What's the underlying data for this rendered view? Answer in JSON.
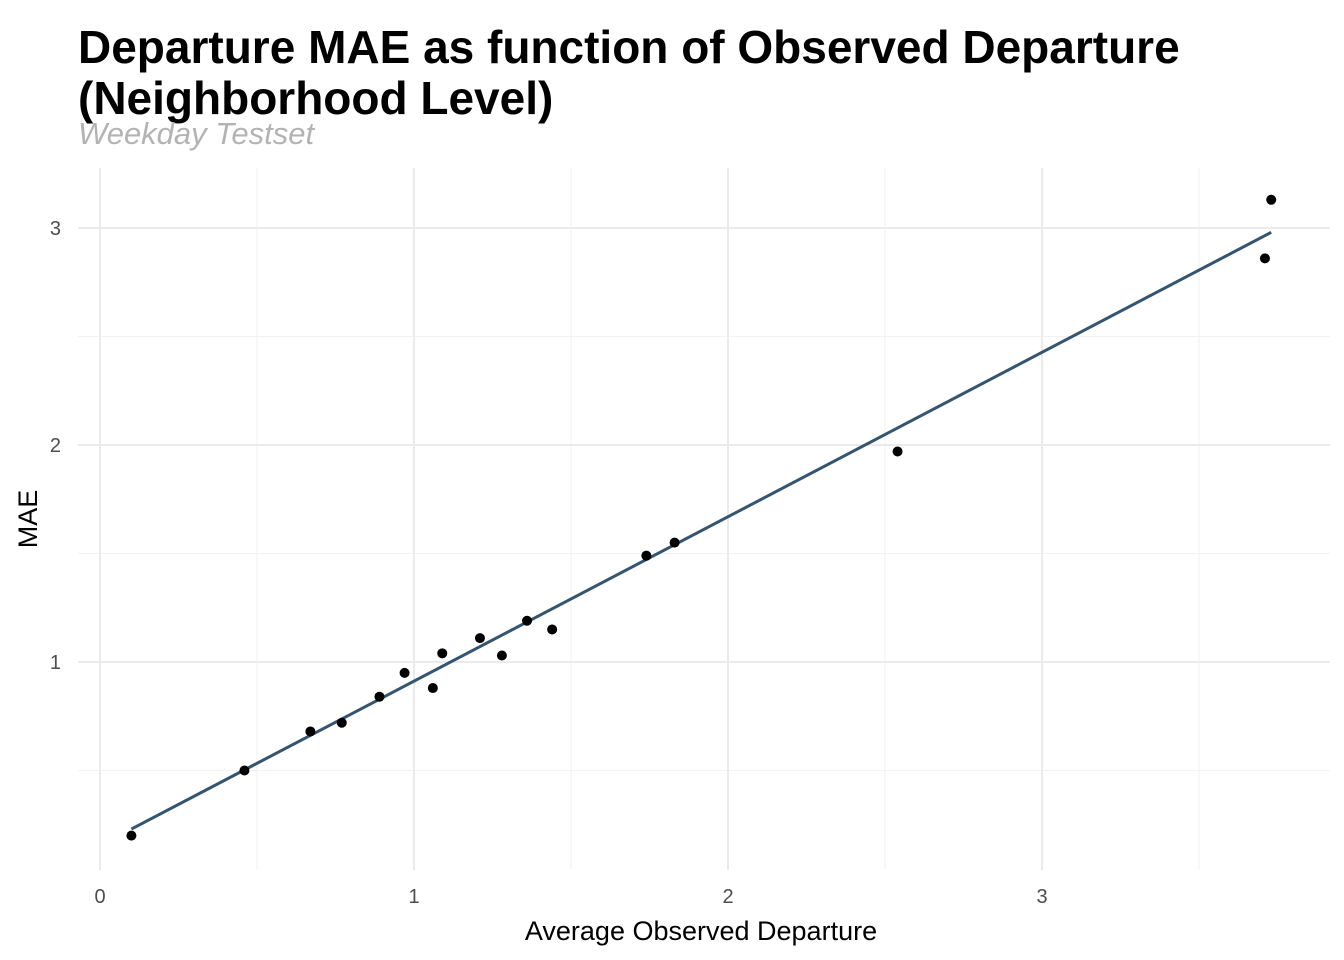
{
  "chart_data": {
    "type": "scatter",
    "title": "Departure MAE as function of Observed Departure (Neighborhood Level)",
    "subtitle": "Weekday Testset",
    "xlabel": "Average Observed Departure",
    "ylabel": "MAE",
    "xlim": [
      0,
      3.9
    ],
    "ylim": [
      0.05,
      3.3
    ],
    "x_ticks": [
      0,
      1,
      2,
      3
    ],
    "y_ticks": [
      1,
      2,
      3
    ],
    "x_minor_ticks": [
      0.5,
      1.5,
      2.5,
      3.5
    ],
    "y_minor_ticks": [
      0.5,
      1.5,
      2.5
    ],
    "grid": true,
    "point_color": "#000000",
    "fit_line_color": "#34546f",
    "points": [
      {
        "x": 0.1,
        "y": 0.2
      },
      {
        "x": 0.46,
        "y": 0.5
      },
      {
        "x": 0.67,
        "y": 0.68
      },
      {
        "x": 0.77,
        "y": 0.72
      },
      {
        "x": 0.89,
        "y": 0.84
      },
      {
        "x": 0.97,
        "y": 0.95
      },
      {
        "x": 1.06,
        "y": 0.88
      },
      {
        "x": 1.09,
        "y": 1.04
      },
      {
        "x": 1.21,
        "y": 1.11
      },
      {
        "x": 1.28,
        "y": 1.03
      },
      {
        "x": 1.36,
        "y": 1.19
      },
      {
        "x": 1.44,
        "y": 1.15
      },
      {
        "x": 1.74,
        "y": 1.49
      },
      {
        "x": 1.83,
        "y": 1.55
      },
      {
        "x": 2.54,
        "y": 1.97
      },
      {
        "x": 3.71,
        "y": 2.86
      },
      {
        "x": 3.73,
        "y": 3.13
      }
    ],
    "fit_line": {
      "x": [
        0.1,
        3.73
      ],
      "y": [
        0.23,
        2.98
      ]
    }
  }
}
